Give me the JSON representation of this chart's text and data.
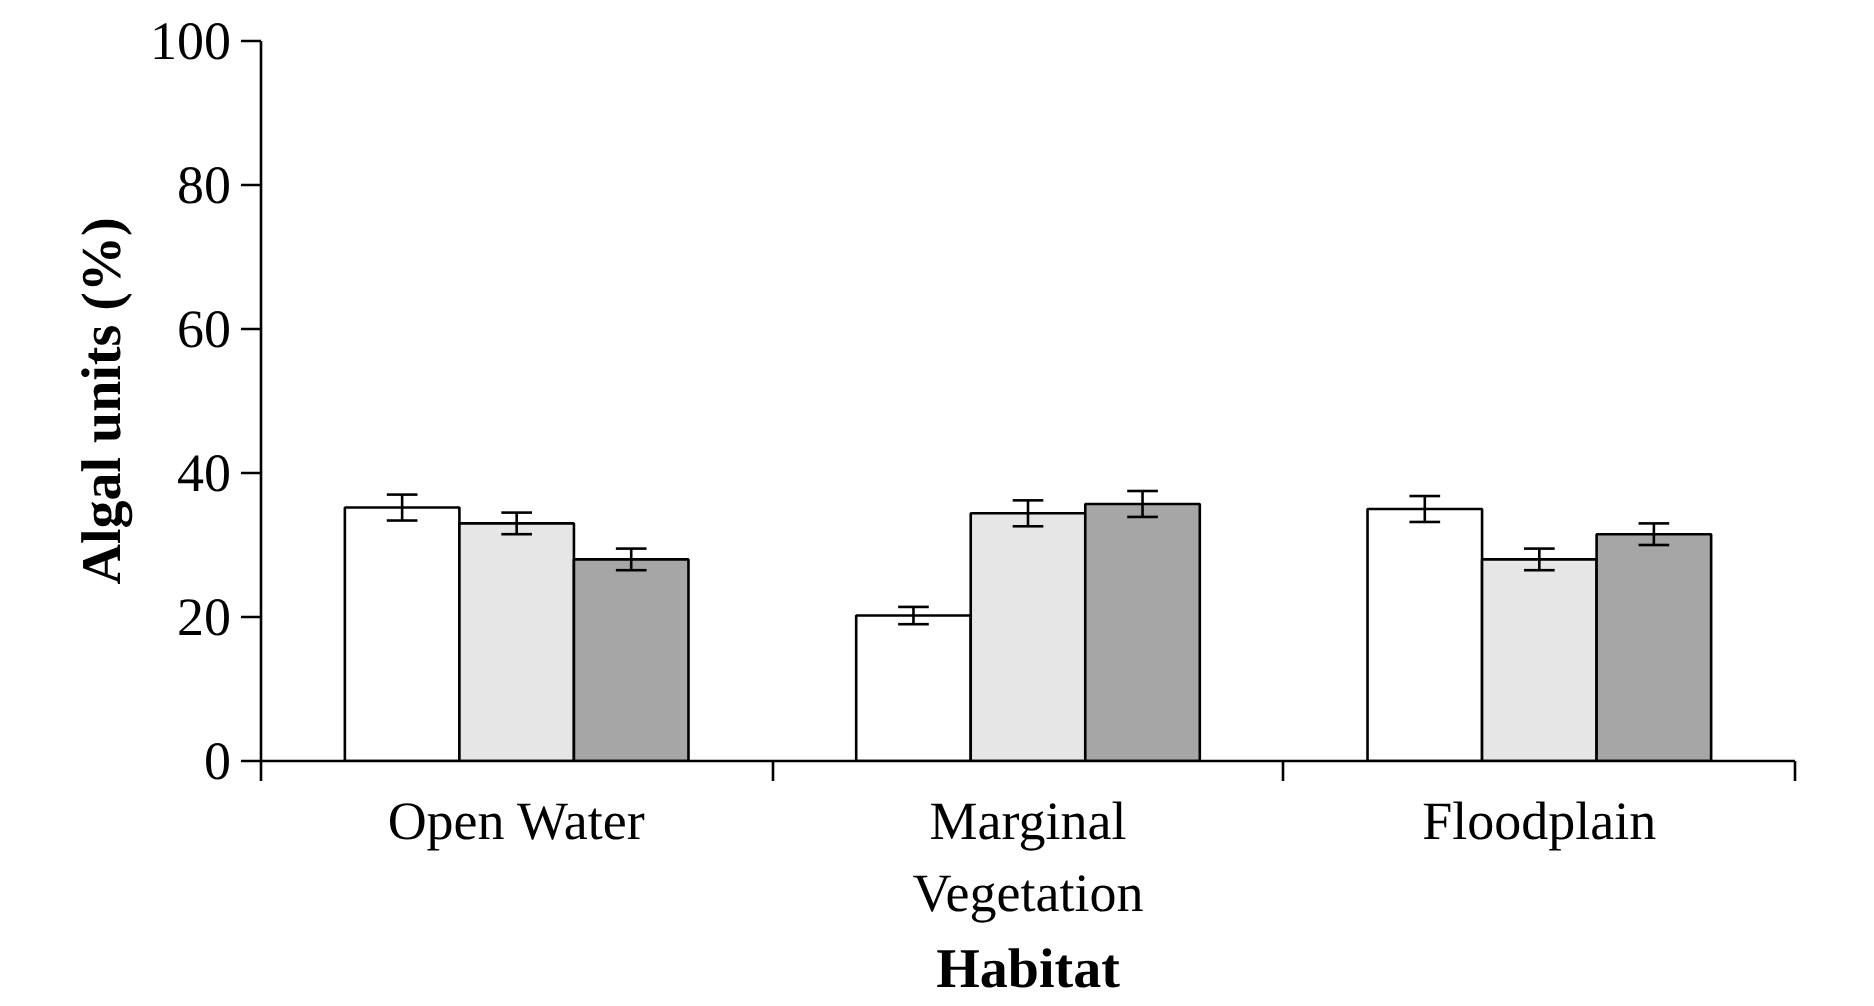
{
  "chart_data": {
    "type": "bar",
    "xlabel": "Habitat",
    "ylabel": "Algal units (%)",
    "categories": [
      "Open Water",
      "Marginal Vegetation",
      "Floodplain"
    ],
    "series": [
      {
        "color": "#ffffff",
        "values": [
          35.2,
          20.2,
          35.0
        ],
        "errors": [
          1.8,
          1.2,
          1.8
        ]
      },
      {
        "color": "#e6e6e6",
        "values": [
          33.0,
          34.4,
          28.0
        ],
        "errors": [
          1.5,
          1.8,
          1.5
        ]
      },
      {
        "color": "#a6a6a6",
        "values": [
          28.0,
          35.7,
          31.5
        ],
        "errors": [
          1.5,
          1.8,
          1.5
        ]
      }
    ],
    "ylim": [
      0,
      100
    ],
    "yticks": [
      0,
      20,
      40,
      60,
      80,
      100
    ],
    "grid": false
  }
}
